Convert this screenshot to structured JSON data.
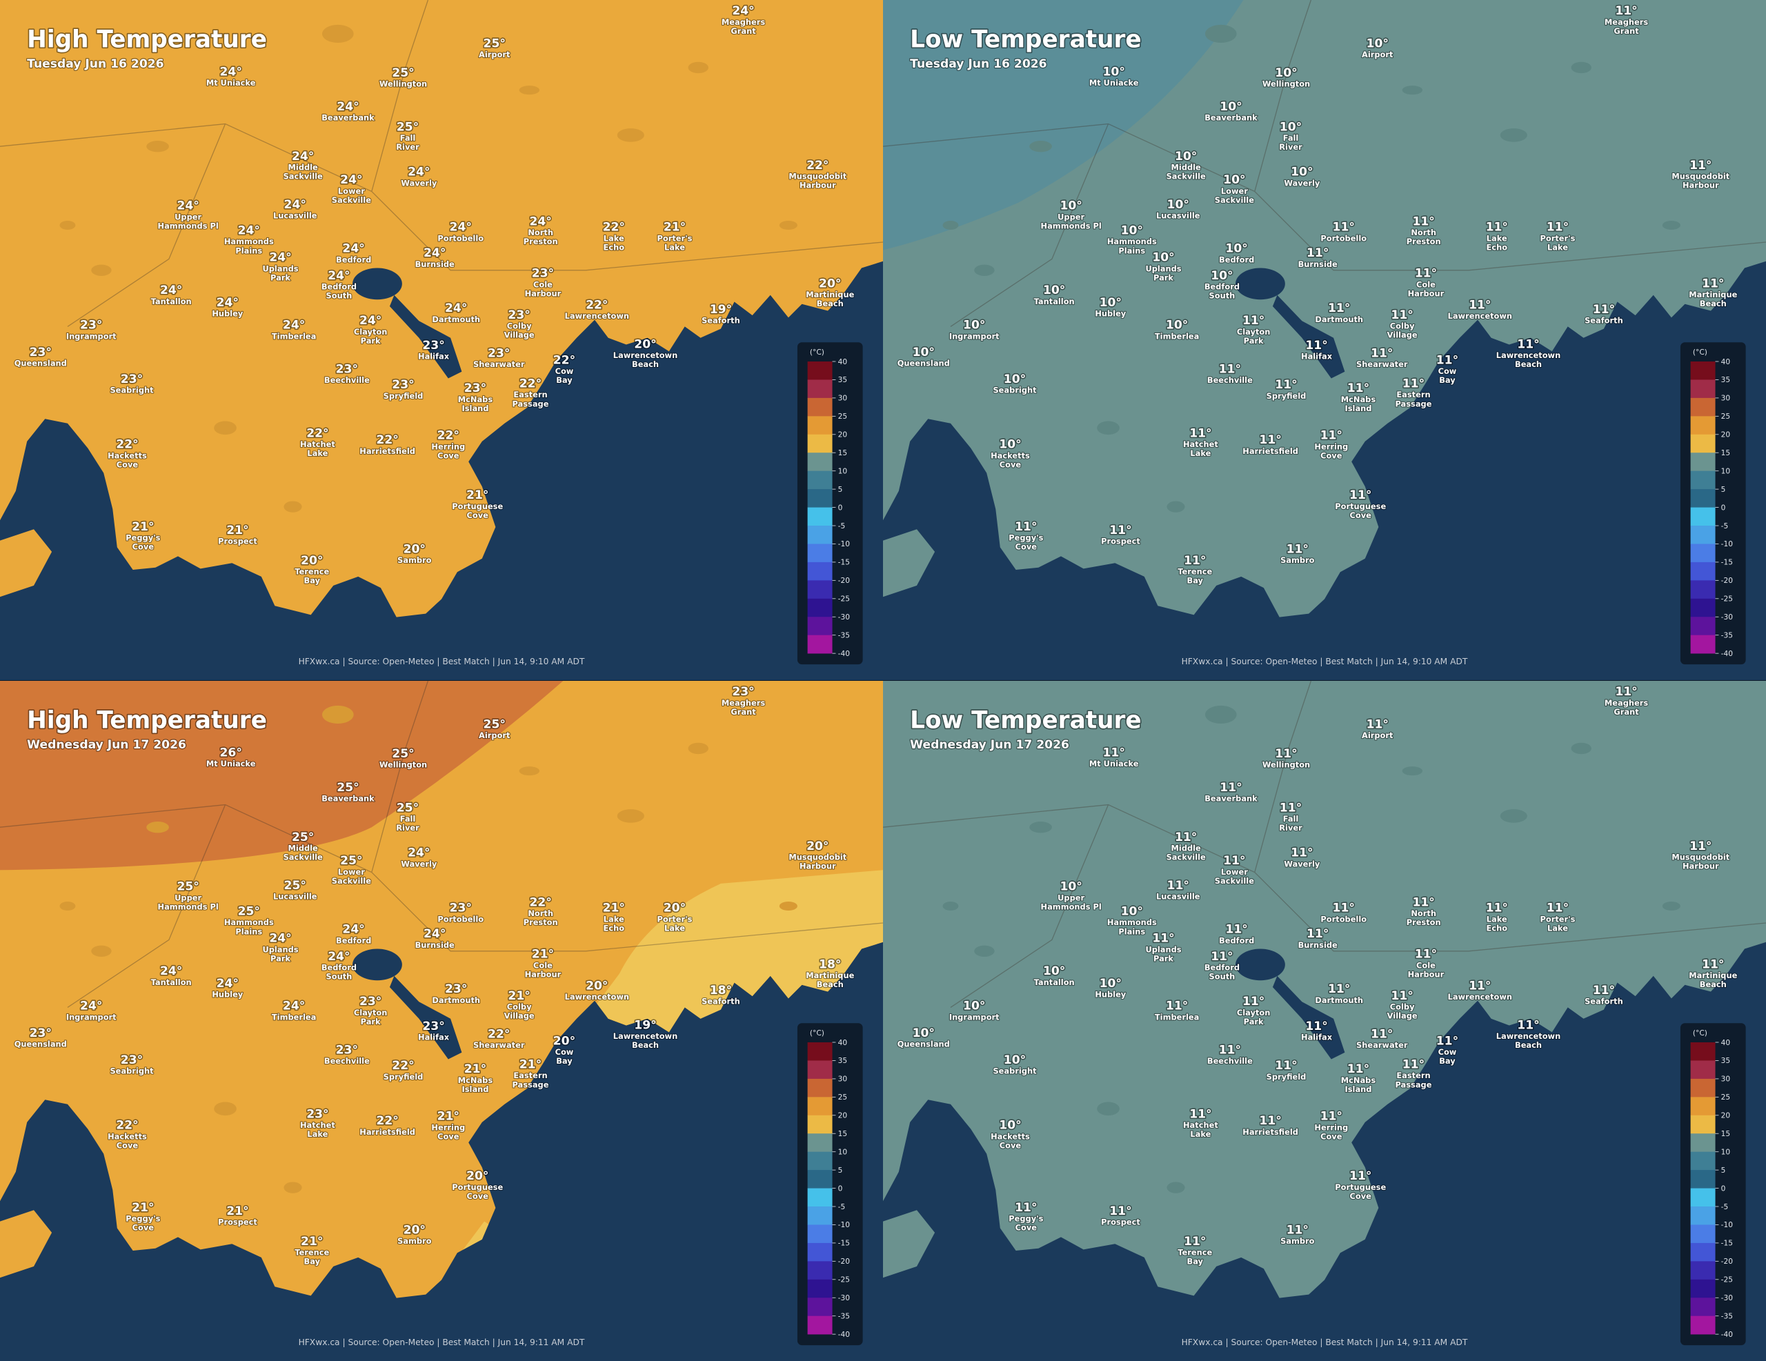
{
  "places": [
    {
      "lines": [
        "Mt Uniacke"
      ]
    },
    {
      "lines": [
        "Airport"
      ]
    },
    {
      "lines": [
        "Meaghers",
        "Grant"
      ]
    },
    {
      "lines": [
        "Wellington"
      ]
    },
    {
      "lines": [
        "Beaverbank"
      ]
    },
    {
      "lines": [
        "Fall",
        "River"
      ]
    },
    {
      "lines": [
        "Middle",
        "Sackville"
      ]
    },
    {
      "lines": [
        "Waverly"
      ]
    },
    {
      "lines": [
        "Lower",
        "Sackville"
      ]
    },
    {
      "lines": [
        "Musquodobit",
        "Harbour"
      ]
    },
    {
      "lines": [
        "Lucasville"
      ]
    },
    {
      "lines": [
        "Upper",
        "Hammonds Pl"
      ]
    },
    {
      "lines": [
        "Hammonds",
        "Plains"
      ]
    },
    {
      "lines": [
        "Portobello"
      ]
    },
    {
      "lines": [
        "North",
        "Preston"
      ]
    },
    {
      "lines": [
        "Lake",
        "Echo"
      ]
    },
    {
      "lines": [
        "Porter's",
        "Lake"
      ]
    },
    {
      "lines": [
        "Uplands",
        "Park"
      ]
    },
    {
      "lines": [
        "Bedford"
      ]
    },
    {
      "lines": [
        "Burnside"
      ]
    },
    {
      "lines": [
        "Bedford",
        "South"
      ]
    },
    {
      "lines": [
        "Cole",
        "Harbour"
      ]
    },
    {
      "lines": [
        "Martinique",
        "Beach"
      ]
    },
    {
      "lines": [
        "Tantallon"
      ]
    },
    {
      "lines": [
        "Hubley"
      ]
    },
    {
      "lines": [
        "Dartmouth"
      ]
    },
    {
      "lines": [
        "Colby",
        "Village"
      ]
    },
    {
      "lines": [
        "Lawrencetown"
      ]
    },
    {
      "lines": [
        "Seaforth"
      ]
    },
    {
      "lines": [
        "Ingramport"
      ]
    },
    {
      "lines": [
        "Timberlea"
      ]
    },
    {
      "lines": [
        "Clayton",
        "Park"
      ]
    },
    {
      "lines": [
        "Halifax"
      ]
    },
    {
      "lines": [
        "Lawrencetown",
        "Beach"
      ]
    },
    {
      "lines": [
        "Queensland"
      ]
    },
    {
      "lines": [
        "Shearwater"
      ]
    },
    {
      "lines": [
        "Cow",
        "Bay"
      ]
    },
    {
      "lines": [
        "Beechville"
      ]
    },
    {
      "lines": [
        "Spryfield"
      ]
    },
    {
      "lines": [
        "Seabright"
      ]
    },
    {
      "lines": [
        "McNabs",
        "Island"
      ]
    },
    {
      "lines": [
        "Eastern",
        "Passage"
      ]
    },
    {
      "lines": [
        "Hatchet",
        "Lake"
      ]
    },
    {
      "lines": [
        "Harrietsfield"
      ]
    },
    {
      "lines": [
        "Herring",
        "Cove"
      ]
    },
    {
      "lines": [
        "Hacketts",
        "Cove"
      ]
    },
    {
      "lines": [
        "Portuguese",
        "Cove"
      ]
    },
    {
      "lines": [
        "Peggy's",
        "Cove"
      ]
    },
    {
      "lines": [
        "Prospect"
      ]
    },
    {
      "lines": [
        "Terence",
        "Bay"
      ]
    },
    {
      "lines": [
        "Sambro"
      ]
    }
  ],
  "legend": {
    "unit": "(°C)",
    "ticks": [
      40,
      35,
      30,
      25,
      20,
      15,
      10,
      5,
      0,
      -5,
      -10,
      -15,
      -20,
      -25,
      -30,
      -35,
      -40
    ],
    "colors": [
      "#760d1c",
      "#a02c48",
      "#c96633",
      "#e49a34",
      "#ecba45",
      "#6b9490",
      "#3f7f95",
      "#2a6887",
      "#45c1ea",
      "#4aa2e6",
      "#4b7de6",
      "#4356d6",
      "#3a2bb0",
      "#2e1391",
      "#5d139c",
      "#a3169f"
    ]
  },
  "panels": [
    {
      "title": "High Temperature",
      "subtitle": "Tuesday Jun 16 2026",
      "footer": "HFXwx.ca | Source: Open-Meteo | Best Match | Jun 14, 9:10 AM ADT",
      "temps": [
        "24°",
        "25°",
        "24°",
        "25°",
        "24°",
        "25°",
        "24°",
        "24°",
        "24°",
        "22°",
        "24°",
        "24°",
        "24°",
        "24°",
        "24°",
        "22°",
        "21°",
        "24°",
        "24°",
        "24°",
        "24°",
        "23°",
        "20°",
        "24°",
        "24°",
        "24°",
        "23°",
        "22°",
        "19°",
        "23°",
        "24°",
        "24°",
        "23°",
        "20°",
        "23°",
        "23°",
        "22°",
        "23°",
        "23°",
        "23°",
        "23°",
        "22°",
        "22°",
        "22°",
        "22°",
        "22°",
        "21°",
        "21°",
        "21°",
        "20°",
        "20°"
      ]
    },
    {
      "title": "Low Temperature",
      "subtitle": "Tuesday Jun 16 2026",
      "footer": "HFXwx.ca | Source: Open-Meteo | Best Match | Jun 14, 9:10 AM ADT",
      "temps": [
        "10°",
        "10°",
        "11°",
        "10°",
        "10°",
        "10°",
        "10°",
        "10°",
        "10°",
        "11°",
        "10°",
        "10°",
        "10°",
        "11°",
        "11°",
        "11°",
        "11°",
        "10°",
        "10°",
        "11°",
        "10°",
        "11°",
        "11°",
        "10°",
        "10°",
        "11°",
        "11°",
        "11°",
        "11°",
        "10°",
        "10°",
        "11°",
        "11°",
        "11°",
        "10°",
        "11°",
        "11°",
        "11°",
        "11°",
        "10°",
        "11°",
        "11°",
        "11°",
        "11°",
        "11°",
        "10°",
        "11°",
        "11°",
        "11°",
        "11°",
        "11°"
      ]
    },
    {
      "title": "High Temperature",
      "subtitle": "Wednesday Jun 17 2026",
      "footer": "HFXwx.ca | Source: Open-Meteo | Best Match | Jun 14, 9:11 AM ADT",
      "temps": [
        "26°",
        "25°",
        "23°",
        "25°",
        "25°",
        "25°",
        "25°",
        "24°",
        "25°",
        "20°",
        "25°",
        "25°",
        "25°",
        "23°",
        "22°",
        "21°",
        "20°",
        "24°",
        "24°",
        "24°",
        "24°",
        "21°",
        "18°",
        "24°",
        "24°",
        "23°",
        "21°",
        "20°",
        "18°",
        "24°",
        "24°",
        "23°",
        "23°",
        "19°",
        "23°",
        "22°",
        "20°",
        "23°",
        "22°",
        "23°",
        "21°",
        "21°",
        "23°",
        "22°",
        "21°",
        "22°",
        "20°",
        "21°",
        "21°",
        "21°",
        "20°"
      ]
    },
    {
      "title": "Low Temperature",
      "subtitle": "Wednesday Jun 17 2026",
      "footer": "HFXwx.ca | Source: Open-Meteo | Best Match | Jun 14, 9:11 AM ADT",
      "temps": [
        "11°",
        "11°",
        "11°",
        "11°",
        "11°",
        "11°",
        "11°",
        "11°",
        "11°",
        "11°",
        "11°",
        "10°",
        "10°",
        "11°",
        "11°",
        "11°",
        "11°",
        "11°",
        "11°",
        "11°",
        "11°",
        "11°",
        "11°",
        "10°",
        "10°",
        "11°",
        "11°",
        "11°",
        "11°",
        "10°",
        "11°",
        "11°",
        "11°",
        "11°",
        "10°",
        "11°",
        "11°",
        "11°",
        "11°",
        "10°",
        "11°",
        "11°",
        "11°",
        "11°",
        "11°",
        "10°",
        "11°",
        "11°",
        "11°",
        "11°",
        "11°"
      ]
    }
  ]
}
